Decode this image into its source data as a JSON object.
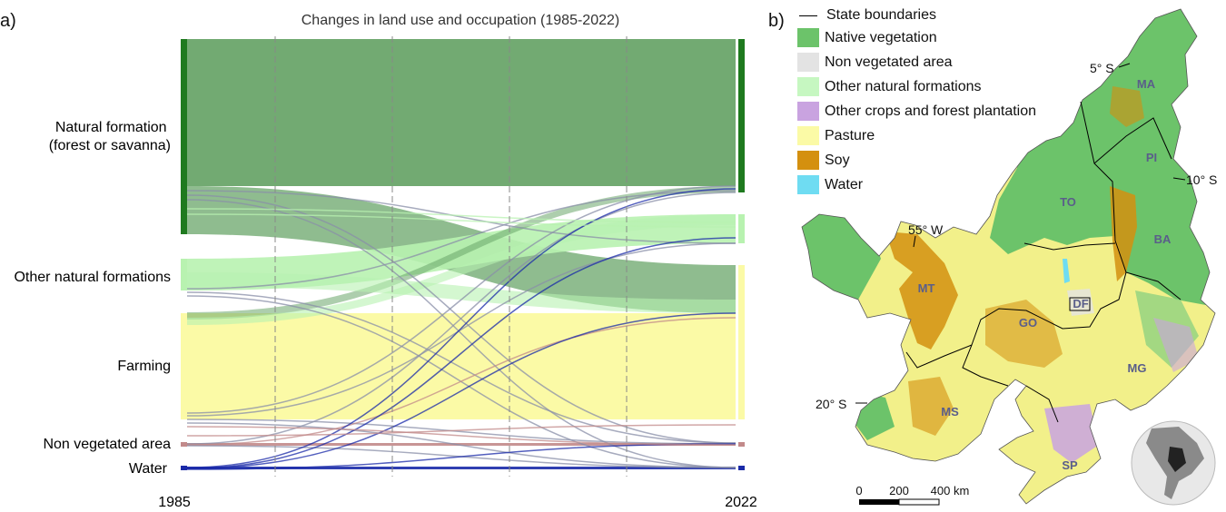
{
  "panel_a_label": "a)",
  "panel_b_label": "b)",
  "chart_data": {
    "type": "sankey",
    "title": "Changes in land use and occupation (1985-2022)",
    "x_start": "1985",
    "x_end": "2022",
    "categories": [
      "Natural formation (forest or savanna)",
      "Other natural formations",
      "Farming",
      "Non vegetated area",
      "Water"
    ],
    "category_labels": [
      [
        "Natural formation",
        "(forest or savanna)"
      ],
      [
        "Other natural formations"
      ],
      [
        "Farming"
      ],
      [
        "Non vegetated area"
      ],
      [
        "Water"
      ]
    ],
    "colors": {
      "natural_formation": "#1f7a1f",
      "natural_flow": "#6aa56a",
      "other_natural": "#b8f2b0",
      "farming": "#fbfaa6",
      "non_vegetated": "#c28a8a",
      "water": "#1a2aa8",
      "thin_link": "#8a8fa8"
    },
    "flows_major": [
      {
        "from": "Natural formation (forest or savanna)",
        "to": "Natural formation (forest or savanna)",
        "share": "large"
      },
      {
        "from": "Natural formation (forest or savanna)",
        "to": "Farming",
        "share": "medium"
      },
      {
        "from": "Other natural formations",
        "to": "Other natural formations",
        "share": "medium"
      },
      {
        "from": "Farming",
        "to": "Farming",
        "share": "large"
      },
      {
        "from": "Non vegetated area",
        "to": "Non vegetated area",
        "share": "small"
      },
      {
        "from": "Water",
        "to": "Water",
        "share": "small"
      }
    ]
  },
  "map": {
    "legend": [
      {
        "label": "State boundaries",
        "kind": "line",
        "color": "#000000"
      },
      {
        "label": "Native vegetation",
        "kind": "swatch",
        "color": "#6cc36a"
      },
      {
        "label": "Non vegetated area",
        "kind": "swatch",
        "color": "#e3e3e3"
      },
      {
        "label": "Other natural formations",
        "kind": "swatch",
        "color": "#c6f7c1"
      },
      {
        "label": "Other crops and forest plantation",
        "kind": "swatch",
        "color": "#c9a3e0"
      },
      {
        "label": "Pasture",
        "kind": "swatch",
        "color": "#fbfaa6"
      },
      {
        "label": "Soy",
        "kind": "swatch",
        "color": "#d4900f"
      },
      {
        "label": "Water",
        "kind": "swatch",
        "color": "#6fdcf2"
      }
    ],
    "states": [
      "MA",
      "PI",
      "TO",
      "BA",
      "MT",
      "DF",
      "GO",
      "MG",
      "MS",
      "SP"
    ],
    "coords": [
      "5° S",
      "10° S",
      "55° W",
      "20° S"
    ],
    "scale": {
      "labels": [
        "0",
        "200",
        "400 km"
      ]
    }
  }
}
